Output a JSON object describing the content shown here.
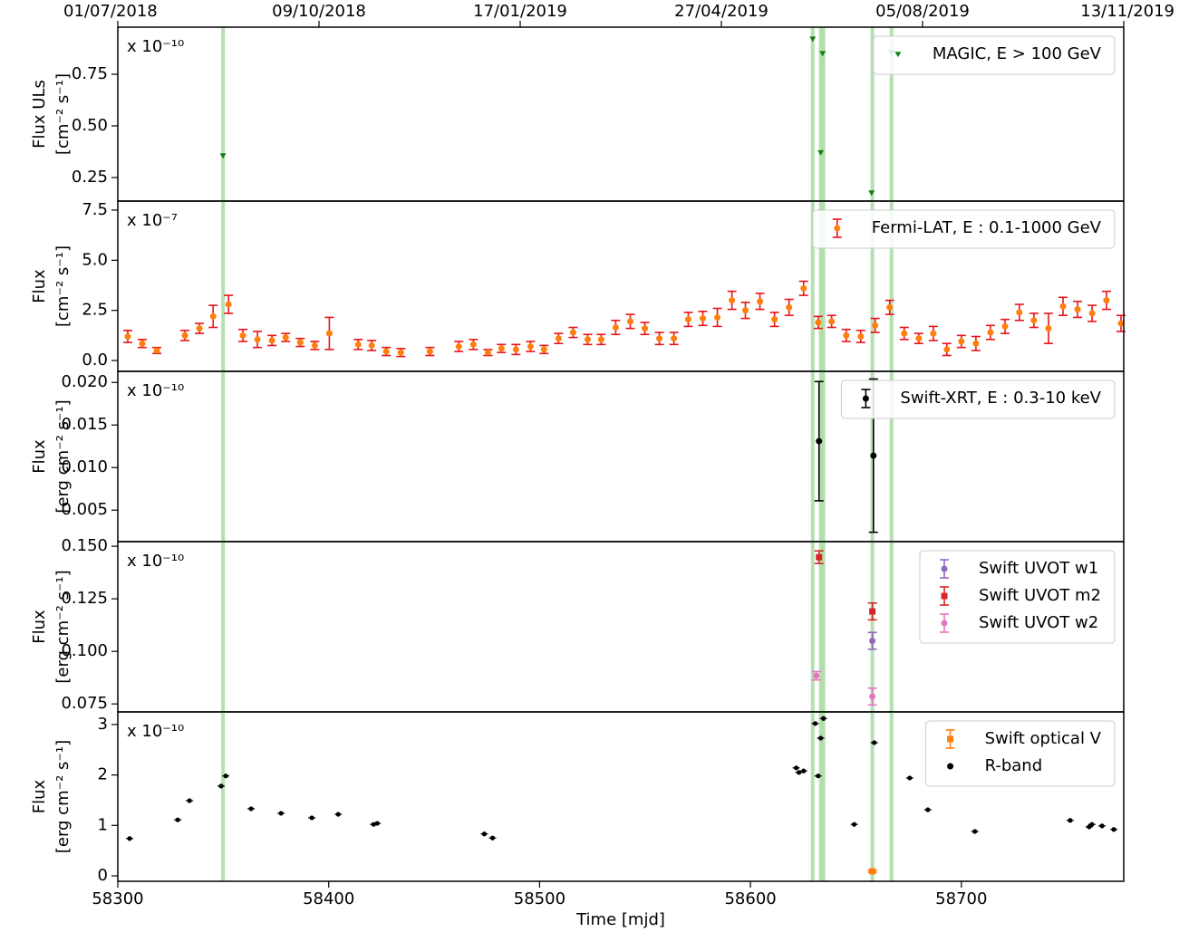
{
  "chart_data": [
    {
      "type": "scatter",
      "offset_label": "x 10⁻¹⁰",
      "ylabel": [
        "Flux ULs",
        "[cm⁻² s⁻¹]"
      ],
      "xlim": [
        58300,
        58777
      ],
      "ylim": [
        0.136,
        0.978
      ],
      "yticks": [
        0.25,
        {
          "value": 0.5,
          "label": "0.50"
        },
        0.75
      ],
      "x2lim": [
        58300,
        58800
      ],
      "x2ticks": [
        {
          "value": 58300,
          "label": "01/07/2018"
        },
        {
          "value": 58400,
          "label": "09/10/2018"
        },
        {
          "value": 58500,
          "label": "17/01/2019"
        },
        {
          "value": 58600,
          "label": "27/04/2019"
        },
        {
          "value": 58700,
          "label": "05/08/2019"
        },
        {
          "value": 58800,
          "label": "13/11/2019"
        }
      ],
      "vlines": {
        "color": "#a6d99f",
        "x": [
          58349.9,
          58629.5,
          58633.3,
          58634.6,
          58657.8,
          58666.9
        ]
      },
      "legend": "upper right",
      "series": [
        {
          "name": "MAGIC, E > 100 GeV",
          "color": "#138013",
          "marker": "v",
          "x": [
            58349.9,
            58629.5,
            58634.2,
            58633.3,
            58657.4,
            58666.9
          ],
          "values": [
            0.355,
            0.92,
            0.85,
            0.37,
            0.175,
            0.855
          ]
        }
      ]
    },
    {
      "type": "scatter",
      "offset_label": "x 10⁻⁷",
      "ylabel": [
        "Flux",
        "[cm⁻² s⁻¹]"
      ],
      "xlim": [
        58300,
        58777
      ],
      "ylim": [
        -0.54,
        7.95
      ],
      "yticks": [
        {
          "value": 0,
          "label": "0.0"
        },
        2.5,
        {
          "value": 5,
          "label": "5.0"
        },
        7.5
      ],
      "legend": "upper right",
      "series": [
        {
          "name": "Fermi-LAT, E : 0.1-1000 GeV",
          "color": "#ff7f0e",
          "ecolor": "#e8141a",
          "marker": "o",
          "x": [
            58304.7,
            58311.6,
            58318.5,
            58331.8,
            58338.7,
            58345.2,
            58352.5,
            58359.3,
            58366.2,
            58373.1,
            58379.6,
            58386.5,
            58393.4,
            58400.3,
            58414.0,
            58420.4,
            58427.3,
            58434.2,
            58448.0,
            58461.7,
            58468.6,
            58475.5,
            58481.9,
            58488.8,
            58495.7,
            58502.1,
            58509.0,
            58515.9,
            58522.8,
            58529.2,
            58536.1,
            58543.0,
            58549.9,
            58556.8,
            58563.7,
            58570.5,
            58577.4,
            58584.3,
            58591.2,
            58597.6,
            58604.5,
            58611.4,
            58618.3,
            58625.2,
            58632.1,
            58638.5,
            58645.4,
            58652.3,
            58659.1,
            58666.0,
            58672.9,
            58679.8,
            58686.7,
            58693.1,
            58700.0,
            58706.9,
            58713.8,
            58720.7,
            58727.5,
            58734.4,
            58741.3,
            58748.2,
            58755.1,
            58762.0,
            58768.8,
            58775.7
          ],
          "values": [
            1.2,
            0.85,
            0.5,
            1.25,
            1.6,
            2.2,
            2.8,
            1.25,
            1.05,
            1.0,
            1.15,
            0.9,
            0.75,
            1.35,
            0.8,
            0.75,
            0.45,
            0.4,
            0.45,
            0.7,
            0.8,
            0.4,
            0.6,
            0.55,
            0.7,
            0.55,
            1.1,
            1.4,
            1.05,
            1.05,
            1.65,
            1.95,
            1.6,
            1.1,
            1.1,
            2.05,
            2.1,
            2.15,
            3.0,
            2.5,
            2.95,
            2.05,
            2.65,
            3.6,
            1.9,
            1.95,
            1.25,
            1.2,
            1.75,
            2.65,
            1.35,
            1.1,
            1.35,
            0.55,
            0.95,
            0.85,
            1.4,
            1.7,
            2.4,
            2.0,
            1.6,
            2.7,
            2.55,
            2.35,
            3.0,
            1.85
          ],
          "errors": [
            0.3,
            0.2,
            0.15,
            0.25,
            0.25,
            0.55,
            0.45,
            0.3,
            0.4,
            0.25,
            0.2,
            0.2,
            0.2,
            0.8,
            0.25,
            0.25,
            0.2,
            0.2,
            0.2,
            0.25,
            0.25,
            0.15,
            0.2,
            0.25,
            0.25,
            0.2,
            0.25,
            0.25,
            0.25,
            0.25,
            0.35,
            0.35,
            0.3,
            0.3,
            0.3,
            0.35,
            0.35,
            0.45,
            0.45,
            0.4,
            0.4,
            0.35,
            0.4,
            0.35,
            0.3,
            0.3,
            0.3,
            0.3,
            0.35,
            0.35,
            0.3,
            0.25,
            0.35,
            0.3,
            0.3,
            0.35,
            0.35,
            0.35,
            0.4,
            0.35,
            0.75,
            0.45,
            0.4,
            0.4,
            0.45,
            0.4
          ]
        }
      ]
    },
    {
      "type": "scatter",
      "offset_label": "x 10⁻¹⁰",
      "ylabel": [
        "Flux",
        "[erg cm⁻² s⁻¹]"
      ],
      "xlim": [
        58300,
        58777
      ],
      "ylim": [
        0.0013,
        0.0213
      ],
      "yticks": [
        0.005,
        {
          "value": 0.01,
          "label": "0.010"
        },
        0.015,
        {
          "value": 0.02,
          "label": "0.020"
        }
      ],
      "legend": "upper right",
      "series": [
        {
          "name": "Swift-XRT, E : 0.3-10 keV",
          "color": "#000000",
          "ecolor": "#000000",
          "marker": "o",
          "x": [
            58632.5,
            58658.3
          ],
          "values": [
            0.0131,
            0.0114
          ],
          "errors": [
            0.007,
            0.009
          ]
        }
      ]
    },
    {
      "type": "scatter",
      "offset_label": "x 10⁻¹⁰",
      "ylabel": [
        "Flux",
        "[erg cm⁻² s⁻¹]"
      ],
      "xlim": [
        58300,
        58777
      ],
      "ylim": [
        0.0712,
        0.1522
      ],
      "yticks": [
        0.075,
        {
          "value": 0.1,
          "label": "0.100"
        },
        0.125,
        {
          "value": 0.15,
          "label": "0.150"
        }
      ],
      "legend": "upper right",
      "series": [
        {
          "name": "Swift UVOT w1",
          "color": "#9467bd",
          "ecolor": "#9467bd",
          "marker": "o",
          "x": [
            58657.8
          ],
          "values": [
            0.105
          ],
          "errors": [
            0.004
          ]
        },
        {
          "name": "Swift UVOT m2",
          "color": "#d62728",
          "ecolor": "#d62728",
          "marker": "s",
          "x": [
            58632.5,
            58657.8
          ],
          "values": [
            0.1448,
            0.119
          ],
          "errors": [
            0.003,
            0.004
          ]
        },
        {
          "name": "Swift UVOT w2",
          "color": "#e377c2",
          "ecolor": "#e377c2",
          "marker": "o",
          "x": [
            58631.2,
            58657.8
          ],
          "values": [
            0.0884,
            0.0785
          ],
          "errors": [
            0.002,
            0.004
          ]
        }
      ]
    },
    {
      "type": "scatter",
      "offset_label": "x 10⁻¹⁰",
      "ylabel": [
        "Flux",
        "[erg cm⁻² s⁻¹]"
      ],
      "xlim": [
        58300,
        58777
      ],
      "ylim": [
        -0.108,
        3.25
      ],
      "yticks": [
        0,
        1,
        2,
        3
      ],
      "xticks": [
        58300,
        58400,
        58500,
        58600,
        58700
      ],
      "xlabel": "Time [mjd]",
      "legend": "upper right",
      "series": [
        {
          "name": "Swift optical V",
          "color": "#ff7f0e",
          "ecolor": "#ff7f0e",
          "marker": "s",
          "x": [
            58657.8
          ],
          "values": [
            0.09
          ],
          "errors": [
            0.02
          ]
        },
        {
          "name": "R-band",
          "color": "#000000",
          "marker": "o",
          "x": [
            58305.6,
            58328.4,
            58334.0,
            58349.0,
            58351.2,
            58363.2,
            58377.4,
            58392.0,
            58404.5,
            58421.3,
            58423.0,
            58473.8,
            58477.7,
            58621.7,
            58623.0,
            58625.2,
            58630.7,
            58632.1,
            58633.3,
            58634.6,
            58649.2,
            58658.7,
            58675.5,
            58684.1,
            58706.4,
            58751.6,
            58760.6,
            58761.9,
            58766.7,
            58772.3
          ],
          "values": [
            0.74,
            1.11,
            1.49,
            1.78,
            1.98,
            1.33,
            1.24,
            1.15,
            1.22,
            1.02,
            1.04,
            0.83,
            0.75,
            2.14,
            2.05,
            2.08,
            3.02,
            1.98,
            2.73,
            3.12,
            1.02,
            2.64,
            1.94,
            1.31,
            0.88,
            1.1,
            0.97,
            1.02,
            0.99,
            0.92
          ]
        }
      ]
    }
  ]
}
